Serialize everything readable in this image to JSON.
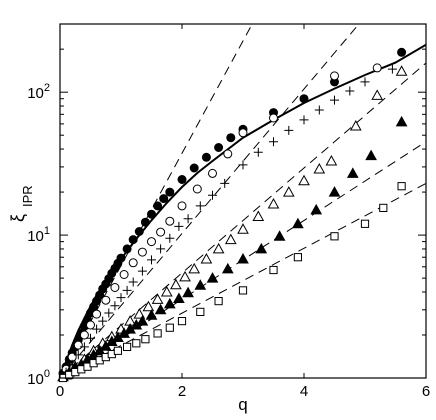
{
  "chart_data": {
    "type": "scatter",
    "title": "",
    "xlabel": "q",
    "ylabel_main": "ξ",
    "ylabel_sub": "IPR",
    "xlim": [
      0,
      6
    ],
    "ylim": [
      1,
      300
    ],
    "yscale": "log",
    "grid": false,
    "legend": "none",
    "x_ticks": [
      {
        "value": 0,
        "label": "0"
      },
      {
        "value": 2,
        "label": "2"
      },
      {
        "value": 4,
        "label": "4"
      },
      {
        "value": 6,
        "label": "6"
      }
    ],
    "y_ticks": [
      {
        "value": 1,
        "base": "10",
        "exp": "0"
      },
      {
        "value": 10,
        "base": "10",
        "exp": "1"
      },
      {
        "value": 100,
        "base": "10",
        "exp": "2"
      }
    ],
    "solid_curve": {
      "x": [
        0,
        0.1,
        0.2,
        0.3,
        0.45,
        0.6,
        0.8,
        1.0,
        1.25,
        1.5,
        1.75,
        2.0,
        2.25,
        2.5,
        3.0,
        3.5,
        4.0,
        4.5,
        5.0,
        5.5,
        6.0
      ],
      "y": [
        1,
        1.3,
        1.7,
        2.15,
        2.9,
        3.8,
        5.2,
        6.8,
        9.4,
        12.7,
        16.8,
        21.7,
        27.2,
        33.0,
        48.0,
        64.0,
        84.0,
        106,
        132,
        161,
        215
      ]
    },
    "dashed_lines": [
      {
        "x": [
          0,
          3.15
        ],
        "y": [
          1,
          300
        ]
      },
      {
        "x": [
          0,
          4.9
        ],
        "y": [
          1,
          300
        ]
      },
      {
        "x": [
          0,
          6.0
        ],
        "y": [
          1,
          160
        ]
      },
      {
        "x": [
          0,
          6.0
        ],
        "y": [
          1,
          45
        ]
      },
      {
        "x": [
          0,
          6.0
        ],
        "y": [
          1,
          23
        ]
      }
    ],
    "series": [
      {
        "marker": "filled-circle",
        "x": [
          0.05,
          0.1,
          0.15,
          0.2,
          0.25,
          0.3,
          0.35,
          0.4,
          0.45,
          0.5,
          0.55,
          0.6,
          0.65,
          0.7,
          0.75,
          0.8,
          0.85,
          0.9,
          0.95,
          1.0,
          1.1,
          1.2,
          1.3,
          1.4,
          1.5,
          1.6,
          1.7,
          1.8,
          2.0,
          2.2,
          2.4,
          2.6,
          2.8,
          3.0,
          3.5,
          4.0,
          4.5,
          5.6
        ],
        "y": [
          1.08,
          1.2,
          1.35,
          1.5,
          1.65,
          1.85,
          2.05,
          2.3,
          2.55,
          2.85,
          3.15,
          3.45,
          3.8,
          4.2,
          4.55,
          4.95,
          5.4,
          5.85,
          6.35,
          6.9,
          8.0,
          9.3,
          10.6,
          12.3,
          14.0,
          16.0,
          18.0,
          20.0,
          24.5,
          29.5,
          35.0,
          41.0,
          48.0,
          55.0,
          72.0,
          90.0,
          118,
          190
        ]
      },
      {
        "marker": "open-circle",
        "x": [
          0.1,
          0.2,
          0.3,
          0.4,
          0.5,
          0.6,
          0.75,
          0.9,
          1.05,
          1.2,
          1.35,
          1.5,
          1.65,
          1.8,
          2.0,
          2.25,
          2.5,
          2.75,
          3.0,
          3.5,
          4.5,
          5.2
        ],
        "y": [
          1.15,
          1.4,
          1.7,
          2.0,
          2.35,
          2.8,
          3.5,
          4.3,
          5.3,
          6.4,
          7.6,
          9.0,
          10.5,
          12.5,
          16.0,
          21.0,
          27.0,
          37.0,
          52.0,
          66.0,
          130.0,
          148.0
        ]
      },
      {
        "marker": "plus",
        "x": [
          0.1,
          0.2,
          0.3,
          0.4,
          0.5,
          0.6,
          0.7,
          0.8,
          0.9,
          1.0,
          1.1,
          1.2,
          1.35,
          1.5,
          1.65,
          1.8,
          1.95,
          2.1,
          2.3,
          2.5,
          2.7,
          3.0,
          3.25,
          3.5,
          3.75,
          4.0,
          4.25,
          4.5,
          4.75,
          5.0,
          5.45
        ],
        "y": [
          1.1,
          1.25,
          1.45,
          1.65,
          1.9,
          2.2,
          2.5,
          2.85,
          3.2,
          3.65,
          4.1,
          4.7,
          5.6,
          6.7,
          8.0,
          9.5,
          11.5,
          13.0,
          16.0,
          19.0,
          23.0,
          31.0,
          38.0,
          45.0,
          54.0,
          64.0,
          75.0,
          88.0,
          102.0,
          118.0,
          145.0
        ]
      },
      {
        "marker": "open-triangle",
        "x": [
          0.1,
          0.25,
          0.4,
          0.55,
          0.7,
          0.85,
          1.0,
          1.15,
          1.3,
          1.45,
          1.6,
          1.75,
          1.9,
          2.05,
          2.2,
          2.4,
          2.6,
          2.8,
          3.0,
          3.25,
          3.5,
          3.75,
          4.0,
          4.25,
          4.45,
          4.85,
          5.2,
          5.6
        ],
        "y": [
          1.05,
          1.2,
          1.35,
          1.55,
          1.75,
          1.95,
          2.2,
          2.5,
          2.8,
          3.15,
          3.55,
          4.0,
          4.5,
          5.1,
          5.8,
          6.8,
          8.0,
          9.3,
          11.0,
          13.5,
          16.5,
          20.0,
          24.0,
          29.0,
          33.0,
          58.0,
          95.0,
          140.0
        ]
      },
      {
        "marker": "filled-triangle",
        "x": [
          0.05,
          0.15,
          0.25,
          0.35,
          0.45,
          0.55,
          0.65,
          0.75,
          0.85,
          0.95,
          1.05,
          1.15,
          1.25,
          1.35,
          1.5,
          1.65,
          1.8,
          1.95,
          2.1,
          2.3,
          2.5,
          2.75,
          3.0,
          3.3,
          3.6,
          3.9,
          4.2,
          4.5,
          4.8,
          5.1,
          5.6
        ],
        "y": [
          1.02,
          1.1,
          1.17,
          1.25,
          1.35,
          1.45,
          1.55,
          1.67,
          1.8,
          1.92,
          2.05,
          2.2,
          2.35,
          2.5,
          2.75,
          3.0,
          3.3,
          3.6,
          3.95,
          4.45,
          5.0,
          5.8,
          6.8,
          8.0,
          9.8,
          12.0,
          15.0,
          20.0,
          27.0,
          36.0,
          62.0
        ]
      },
      {
        "marker": "open-square",
        "x": [
          0.05,
          0.15,
          0.25,
          0.35,
          0.45,
          0.55,
          0.65,
          0.75,
          0.85,
          0.95,
          1.1,
          1.25,
          1.4,
          1.6,
          1.8,
          2.0,
          2.3,
          2.6,
          3.0,
          3.5,
          3.9,
          4.5,
          5.0,
          5.3,
          5.6
        ],
        "y": [
          1.0,
          1.05,
          1.1,
          1.15,
          1.2,
          1.27,
          1.33,
          1.4,
          1.47,
          1.55,
          1.65,
          1.75,
          1.87,
          2.05,
          2.25,
          2.5,
          2.9,
          3.45,
          4.1,
          5.7,
          7.0,
          9.8,
          12.0,
          15.5,
          22.0
        ]
      }
    ]
  }
}
